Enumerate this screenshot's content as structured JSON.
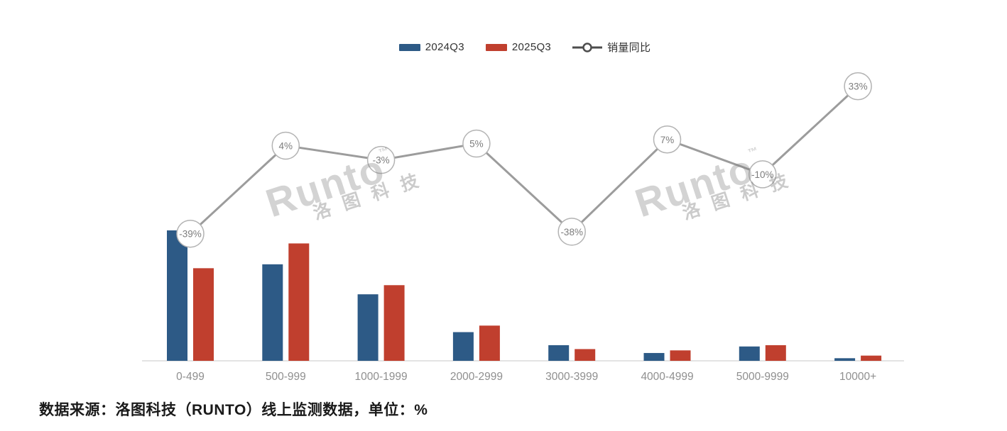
{
  "legend": {
    "items": [
      {
        "label": "2024Q3",
        "color": "#2d5a86",
        "marker": "bar-swatch"
      },
      {
        "label": "2025Q3",
        "color": "#c03f2e",
        "marker": "bar-swatch"
      },
      {
        "label": "销量同比",
        "color": "#4d4d4d",
        "marker": "line-circle"
      }
    ]
  },
  "watermark": {
    "brand": "Runto",
    "tm": "™",
    "cn": "洛图科技"
  },
  "source_note": "数据来源：洛图科技（RUNTO）线上监测数据，单位：%",
  "chart_data": {
    "type": "bar",
    "subtype": "grouped bars with overlaid year-over-year line, circular data-point labels, no visible value axes",
    "title": "",
    "xlabel": "",
    "ylabel": "",
    "grid": false,
    "legend_position": "top-center",
    "categories": [
      "0-499",
      "500-999",
      "1000-1999",
      "2000-2999",
      "3000-3999",
      "4000-4999",
      "5000-9999",
      "10000+"
    ],
    "series": [
      {
        "name": "2024Q3",
        "type": "bar",
        "color": "#2d5a86",
        "values_relative_est": [
          100,
          74,
          51,
          22,
          12,
          6,
          11,
          2
        ]
      },
      {
        "name": "2025Q3",
        "type": "bar",
        "color": "#c03f2e",
        "values_relative_est": [
          71,
          90,
          58,
          27,
          9,
          8,
          12,
          4
        ]
      },
      {
        "name": "销量同比",
        "type": "line",
        "unit": "%",
        "color": "#9c9c9c",
        "marker": "open-circle",
        "values": [
          -39,
          4,
          -3,
          5,
          -38,
          7,
          -10,
          33
        ],
        "labels": [
          "-39%",
          "4%",
          "-3%",
          "5%",
          "-38%",
          "7%",
          "-10%",
          "33%"
        ]
      }
    ]
  }
}
